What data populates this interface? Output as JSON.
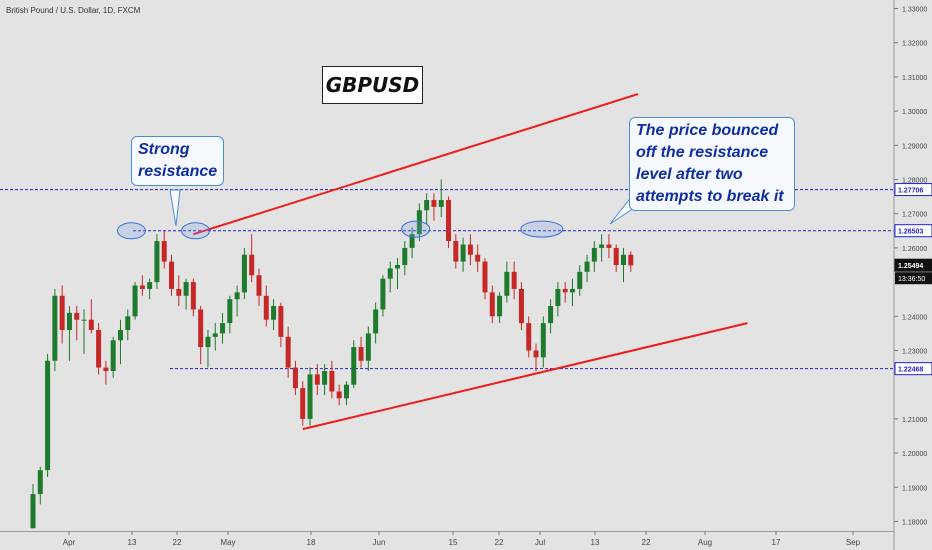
{
  "chart_data": {
    "type": "candlestick",
    "symbol": "British Pound / U.S. Dollar, 1D, FXCM",
    "title": "GBPUSD",
    "x_labels": [
      "Apr",
      "13",
      "22",
      "May",
      "18",
      "Jun",
      "15",
      "22",
      "Jul",
      "13",
      "22",
      "Aug",
      "17",
      "Sep"
    ],
    "y_ticks": [
      "1.33000",
      "1.32000",
      "1.31000",
      "1.30000",
      "1.29000",
      "1.28000",
      "1.27000",
      "1.26000",
      "1.24000",
      "1.23000",
      "1.21000",
      "1.20000",
      "1.19000",
      "1.18000"
    ],
    "y_range": [
      1.1775,
      1.3325
    ],
    "price_labels": [
      {
        "value": 1.27706,
        "text": "1.27706"
      },
      {
        "value": 1.26503,
        "text": "1.26503"
      },
      {
        "value": 1.25494,
        "text": "1.25494"
      },
      {
        "value": 1.22468,
        "text": "1.22468"
      }
    ],
    "countdown_label": "13:36:50",
    "candles": [
      [
        1.178,
        1.191,
        1.178,
        1.188
      ],
      [
        1.188,
        1.196,
        1.185,
        1.195
      ],
      [
        1.195,
        1.229,
        1.193,
        1.227
      ],
      [
        1.227,
        1.248,
        1.224,
        1.246
      ],
      [
        1.246,
        1.249,
        1.232,
        1.236
      ],
      [
        1.236,
        1.243,
        1.227,
        1.241
      ],
      [
        1.241,
        1.243,
        1.233,
        1.239
      ],
      [
        1.239,
        1.242,
        1.229,
        1.239
      ],
      [
        1.239,
        1.245,
        1.235,
        1.236
      ],
      [
        1.236,
        1.238,
        1.223,
        1.225
      ],
      [
        1.225,
        1.227,
        1.22,
        1.224
      ],
      [
        1.224,
        1.234,
        1.222,
        1.233
      ],
      [
        1.233,
        1.239,
        1.226,
        1.236
      ],
      [
        1.236,
        1.242,
        1.233,
        1.24
      ],
      [
        1.24,
        1.25,
        1.239,
        1.249
      ],
      [
        1.249,
        1.252,
        1.246,
        1.248
      ],
      [
        1.248,
        1.251,
        1.245,
        1.25
      ],
      [
        1.25,
        1.264,
        1.248,
        1.262
      ],
      [
        1.262,
        1.265,
        1.254,
        1.256
      ],
      [
        1.256,
        1.258,
        1.246,
        1.248
      ],
      [
        1.248,
        1.252,
        1.243,
        1.246
      ],
      [
        1.246,
        1.251,
        1.242,
        1.25
      ],
      [
        1.25,
        1.251,
        1.24,
        1.242
      ],
      [
        1.242,
        1.243,
        1.226,
        1.231
      ],
      [
        1.231,
        1.236,
        1.225,
        1.234
      ],
      [
        1.234,
        1.238,
        1.23,
        1.235
      ],
      [
        1.235,
        1.241,
        1.232,
        1.238
      ],
      [
        1.238,
        1.246,
        1.235,
        1.245
      ],
      [
        1.245,
        1.249,
        1.24,
        1.247
      ],
      [
        1.247,
        1.26,
        1.245,
        1.258
      ],
      [
        1.258,
        1.264,
        1.25,
        1.252
      ],
      [
        1.252,
        1.254,
        1.243,
        1.246
      ],
      [
        1.246,
        1.249,
        1.237,
        1.239
      ],
      [
        1.239,
        1.245,
        1.236,
        1.243
      ],
      [
        1.243,
        1.244,
        1.231,
        1.234
      ],
      [
        1.234,
        1.237,
        1.222,
        1.225
      ],
      [
        1.225,
        1.227,
        1.217,
        1.219
      ],
      [
        1.219,
        1.221,
        1.208,
        1.21
      ],
      [
        1.21,
        1.225,
        1.208,
        1.223
      ],
      [
        1.223,
        1.226,
        1.217,
        1.22
      ],
      [
        1.22,
        1.226,
        1.217,
        1.224
      ],
      [
        1.224,
        1.227,
        1.216,
        1.218
      ],
      [
        1.218,
        1.22,
        1.214,
        1.216
      ],
      [
        1.216,
        1.221,
        1.214,
        1.22
      ],
      [
        1.22,
        1.233,
        1.219,
        1.231
      ],
      [
        1.231,
        1.234,
        1.225,
        1.227
      ],
      [
        1.227,
        1.237,
        1.224,
        1.235
      ],
      [
        1.235,
        1.244,
        1.232,
        1.242
      ],
      [
        1.242,
        1.252,
        1.24,
        1.251
      ],
      [
        1.251,
        1.256,
        1.247,
        1.254
      ],
      [
        1.254,
        1.257,
        1.248,
        1.255
      ],
      [
        1.255,
        1.262,
        1.252,
        1.26
      ],
      [
        1.26,
        1.266,
        1.257,
        1.264
      ],
      [
        1.264,
        1.273,
        1.262,
        1.271
      ],
      [
        1.271,
        1.276,
        1.267,
        1.274
      ],
      [
        1.274,
        1.276,
        1.268,
        1.272
      ],
      [
        1.272,
        1.28,
        1.269,
        1.274
      ],
      [
        1.274,
        1.275,
        1.26,
        1.262
      ],
      [
        1.262,
        1.264,
        1.254,
        1.256
      ],
      [
        1.256,
        1.263,
        1.253,
        1.261
      ],
      [
        1.261,
        1.264,
        1.255,
        1.258
      ],
      [
        1.258,
        1.261,
        1.253,
        1.256
      ],
      [
        1.256,
        1.257,
        1.245,
        1.247
      ],
      [
        1.247,
        1.249,
        1.238,
        1.24
      ],
      [
        1.24,
        1.247,
        1.238,
        1.246
      ],
      [
        1.246,
        1.256,
        1.244,
        1.253
      ],
      [
        1.253,
        1.256,
        1.245,
        1.248
      ],
      [
        1.248,
        1.25,
        1.236,
        1.238
      ],
      [
        1.238,
        1.24,
        1.228,
        1.23
      ],
      [
        1.23,
        1.232,
        1.224,
        1.228
      ],
      [
        1.228,
        1.24,
        1.225,
        1.238
      ],
      [
        1.238,
        1.245,
        1.235,
        1.243
      ],
      [
        1.243,
        1.25,
        1.24,
        1.248
      ],
      [
        1.248,
        1.25,
        1.244,
        1.247
      ],
      [
        1.247,
        1.251,
        1.243,
        1.248
      ],
      [
        1.248,
        1.255,
        1.246,
        1.253
      ],
      [
        1.253,
        1.258,
        1.25,
        1.256
      ],
      [
        1.256,
        1.262,
        1.253,
        1.26
      ],
      [
        1.26,
        1.264,
        1.256,
        1.261
      ],
      [
        1.261,
        1.264,
        1.257,
        1.26
      ],
      [
        1.26,
        1.261,
        1.253,
        1.255
      ],
      [
        1.255,
        1.26,
        1.25,
        1.258
      ],
      [
        1.258,
        1.259,
        1.253,
        1.2549
      ]
    ],
    "levels": [
      1.27706,
      1.26503,
      1.22468
    ],
    "channel_upper": [
      [
        22,
        1.264
      ],
      [
        83,
        1.305
      ]
    ],
    "channel_lower": [
      [
        37,
        1.207
      ],
      [
        98,
        1.238
      ]
    ],
    "ellipses": [
      [
        13.5,
        1.265
      ],
      [
        22.3,
        1.265
      ],
      [
        52.5,
        1.2655
      ],
      [
        69.8,
        1.2655
      ]
    ]
  },
  "annotations": {
    "resistance_lines": [
      "Strong",
      "resistance"
    ],
    "bounce_lines": [
      "The price bounced",
      "off the resistance",
      "level after two",
      "attempts to break it"
    ]
  },
  "colors": {
    "background": "#e3e3e3",
    "bull": "#1e7a2c",
    "bear": "#c62828",
    "channel": "#ee1c1c",
    "level": "#2222cc",
    "callout_border": "#4a8ed8",
    "callout_text": "#0f2fa0"
  }
}
